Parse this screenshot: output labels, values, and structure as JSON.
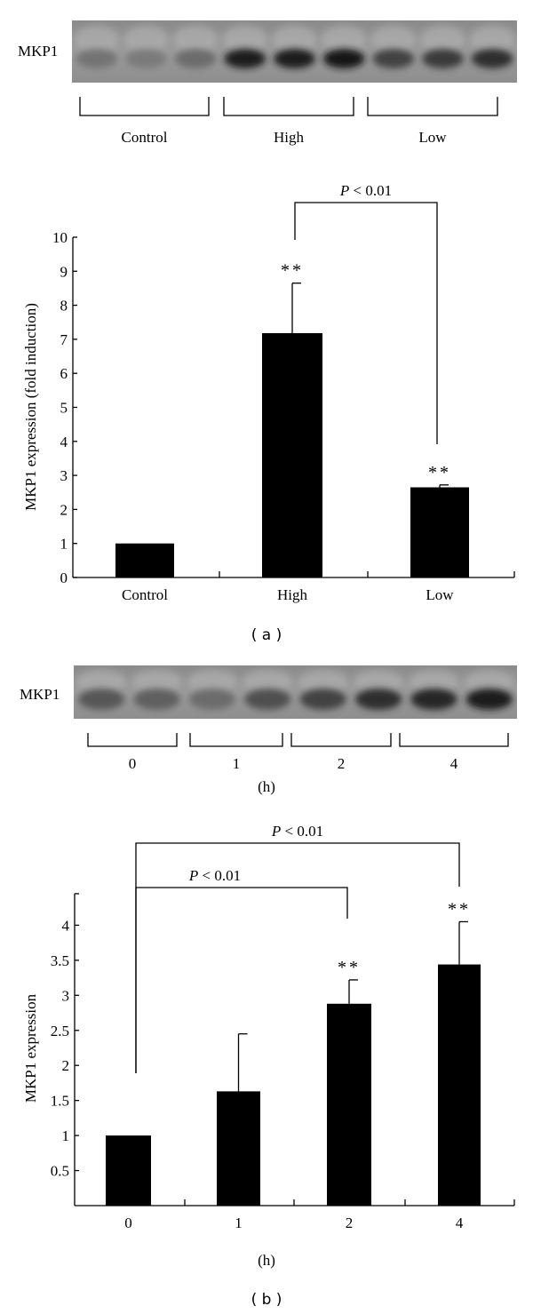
{
  "chart_data": [
    {
      "type": "bar",
      "panel_label": "( a )",
      "blot": {
        "protein_label": "MKP1",
        "groups": [
          "Control",
          "High",
          "Low"
        ],
        "lane_band_intensity": [
          0.25,
          0.2,
          0.3,
          0.85,
          0.85,
          0.9,
          0.6,
          0.65,
          0.75
        ]
      },
      "categories": [
        "Control",
        "High",
        "Low"
      ],
      "values": [
        1.0,
        7.18,
        2.65
      ],
      "error_upper": [
        0,
        1.47,
        0.07
      ],
      "annotations": [
        "",
        "**",
        "**"
      ],
      "comparisons": [
        {
          "from": "High",
          "to": "Low",
          "label_p": "P",
          "label_rest": " < 0.01"
        }
      ],
      "title": "",
      "xlabel": "",
      "ylabel": "MKP1 expression (fold induction)",
      "ylim": [
        0,
        10
      ],
      "yticks": [
        "0",
        "1",
        "2",
        "3",
        "4",
        "5",
        "6",
        "7",
        "8",
        "9",
        "10"
      ],
      "grid": false
    },
    {
      "type": "bar",
      "panel_label": "( b )",
      "blot": {
        "protein_label": "MKP1",
        "groups": [
          "0",
          "1",
          "2",
          "4"
        ],
        "unit_label": "(h)",
        "lane_band_intensity": [
          0.45,
          0.4,
          0.3,
          0.5,
          0.6,
          0.75,
          0.8,
          0.85
        ]
      },
      "categories": [
        "0",
        "1",
        "2",
        "4"
      ],
      "values": [
        1.0,
        1.63,
        2.88,
        3.44
      ],
      "error_upper": [
        0,
        0.82,
        0.34,
        0.61
      ],
      "annotations": [
        "",
        "",
        "**",
        "**"
      ],
      "comparisons": [
        {
          "from": "0",
          "to": "2",
          "label_p": "P",
          "label_rest": " < 0.01"
        },
        {
          "from": "0",
          "to": "4",
          "label_p": "P",
          "label_rest": " < 0.01"
        }
      ],
      "title": "",
      "xlabel": "(h)",
      "ylabel": "MKP1 expression",
      "ylim": [
        0,
        4.45
      ],
      "yticks": [
        "0.5",
        "1",
        "1.5",
        "2",
        "2.5",
        "3",
        "3.5",
        "4"
      ],
      "grid": false
    }
  ]
}
